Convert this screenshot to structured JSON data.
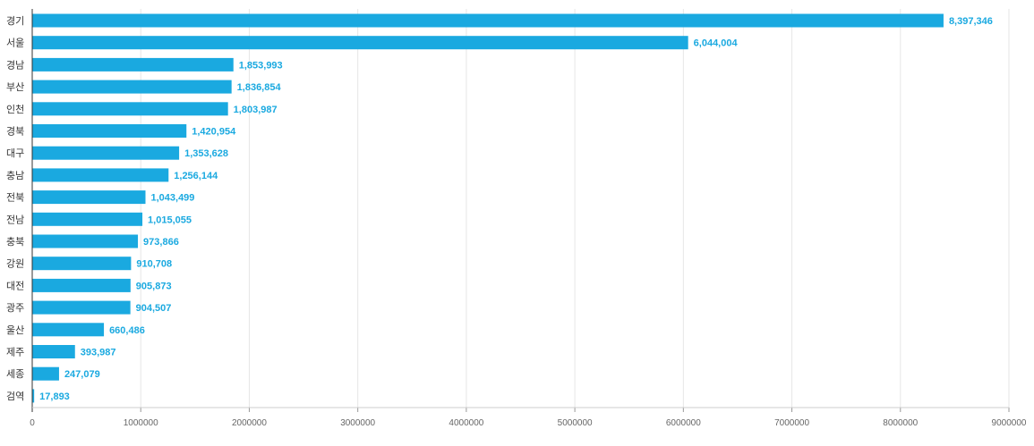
{
  "chart_data": {
    "type": "bar",
    "orientation": "horizontal",
    "categories": [
      "경기",
      "서울",
      "경남",
      "부산",
      "인천",
      "경북",
      "대구",
      "충남",
      "전북",
      "전남",
      "충북",
      "강원",
      "대전",
      "광주",
      "울산",
      "제주",
      "세종",
      "검역"
    ],
    "values": [
      8397346,
      6044004,
      1853993,
      1836854,
      1803987,
      1420954,
      1353628,
      1256144,
      1043499,
      1015055,
      973866,
      910708,
      905873,
      904507,
      660486,
      393987,
      247079,
      17893
    ],
    "data_labels": [
      "8,397,346",
      "6,044,004",
      "1,853,993",
      "1,836,854",
      "1,803,987",
      "1,420,954",
      "1,353,628",
      "1,256,144",
      "1,043,499",
      "1,015,055",
      "973,866",
      "910,708",
      "905,873",
      "904,507",
      "660,486",
      "393,987",
      "247,079",
      "17,893"
    ],
    "x_ticks": [
      0,
      1000000,
      2000000,
      3000000,
      4000000,
      5000000,
      6000000,
      7000000,
      8000000,
      9000000
    ],
    "xlim": [
      0,
      9000000
    ],
    "title": "",
    "xlabel": "",
    "ylabel": "",
    "grid": "vertical",
    "legend": "none",
    "bar_color": "#1aa9e0",
    "label_color": "#1aa9e0"
  }
}
